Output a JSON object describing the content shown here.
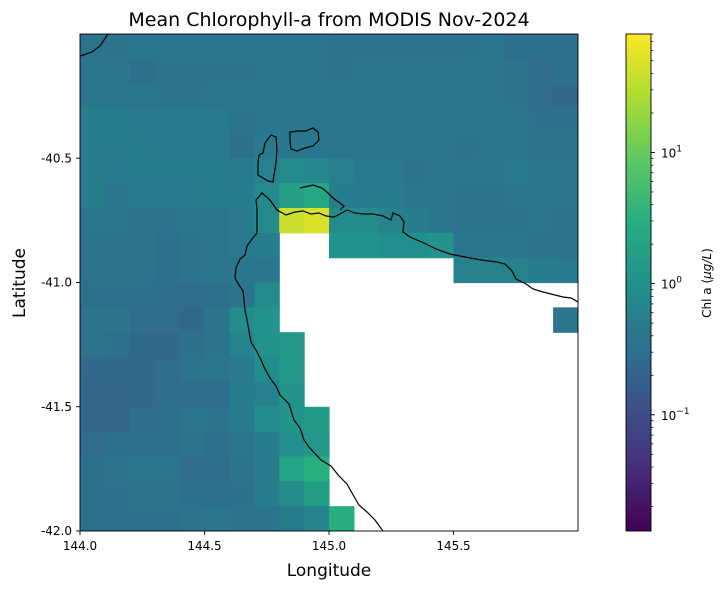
{
  "chart_data": {
    "type": "heatmap",
    "title": "Mean Chlorophyll-a from MODIS Nov-2024",
    "xlabel": "Longitude",
    "ylabel": "Latitude",
    "xlim": [
      144.0,
      146.0
    ],
    "ylim": [
      -42.0,
      -40.0
    ],
    "x_ticks": [
      144.0,
      144.5,
      145.0,
      145.5
    ],
    "x_tick_labels": [
      "144.0",
      "144.5",
      "145.0",
      "145.5"
    ],
    "y_ticks": [
      -40.5,
      -41.0,
      -41.5,
      -42.0
    ],
    "y_tick_labels": [
      "-40.5",
      "-41.0",
      "-41.5",
      "-42.0"
    ],
    "grid": false,
    "colormap": "viridis",
    "colorbar": {
      "label": "Chl a",
      "units": "μg/L",
      "scale": "log",
      "range": [
        0.013,
        80
      ],
      "tick_values": [
        0.1,
        1,
        10
      ],
      "tick_bases": [
        "10",
        "10",
        "10"
      ],
      "tick_exponents": [
        "−1",
        "0",
        "1"
      ]
    },
    "cell_size_deg": 0.1,
    "no_data": "land (white)",
    "grid_values_log10": [
      [
        -0.45,
        -0.45,
        -0.4,
        -0.4,
        -0.4,
        -0.4,
        -0.4,
        -0.4,
        -0.4,
        -0.4,
        -0.45,
        -0.45,
        -0.45,
        -0.45,
        -0.45,
        -0.45,
        -0.4,
        -0.5,
        -0.5,
        -0.5
      ],
      [
        -0.4,
        -0.4,
        -0.5,
        -0.45,
        -0.45,
        -0.45,
        -0.45,
        -0.4,
        -0.4,
        -0.4,
        -0.45,
        -0.4,
        -0.4,
        -0.4,
        -0.4,
        -0.4,
        -0.4,
        -0.45,
        -0.55,
        -0.5
      ],
      [
        -0.4,
        -0.4,
        -0.4,
        -0.45,
        -0.45,
        -0.4,
        -0.4,
        -0.4,
        -0.4,
        -0.4,
        -0.4,
        -0.4,
        -0.4,
        -0.4,
        -0.4,
        -0.4,
        -0.4,
        -0.45,
        -0.55,
        -0.6
      ],
      [
        -0.3,
        -0.3,
        -0.35,
        -0.35,
        -0.35,
        -0.35,
        -0.45,
        -0.4,
        -0.4,
        -0.4,
        -0.4,
        -0.4,
        -0.4,
        -0.4,
        -0.4,
        -0.4,
        -0.4,
        -0.4,
        -0.5,
        -0.5
      ],
      [
        -0.3,
        -0.3,
        -0.3,
        -0.35,
        -0.35,
        -0.35,
        -0.5,
        -0.35,
        -0.4,
        -0.4,
        -0.4,
        -0.4,
        -0.4,
        -0.4,
        -0.4,
        -0.45,
        -0.4,
        -0.4,
        -0.45,
        -0.45
      ],
      [
        -0.3,
        -0.35,
        -0.3,
        -0.3,
        -0.3,
        -0.3,
        -0.35,
        -0.2,
        -0.1,
        -0.15,
        -0.25,
        -0.35,
        -0.35,
        -0.45,
        -0.4,
        -0.4,
        -0.4,
        -0.35,
        -0.4,
        -0.4
      ],
      [
        -0.3,
        -0.4,
        -0.35,
        -0.35,
        -0.35,
        -0.3,
        -0.3,
        -0.1,
        0.25,
        0.35,
        -0.3,
        -0.35,
        -0.3,
        -0.4,
        -0.4,
        -0.45,
        -0.45,
        -0.4,
        -0.4,
        -0.4
      ],
      [
        -0.4,
        -0.4,
        -0.45,
        -0.45,
        -0.4,
        -0.4,
        -0.35,
        -0.1,
        1.6,
        1.7,
        -0.1,
        -0.1,
        -0.2,
        -0.3,
        -0.4,
        -0.45,
        -0.45,
        -0.45,
        -0.4,
        -0.45
      ],
      [
        -0.45,
        -0.45,
        -0.45,
        -0.5,
        -0.45,
        -0.4,
        -0.35,
        -0.3,
        null,
        null,
        0.05,
        0.05,
        0.0,
        0.0,
        0.05,
        -0.4,
        -0.4,
        -0.4,
        -0.45,
        -0.45
      ],
      [
        -0.45,
        -0.45,
        -0.45,
        -0.5,
        -0.45,
        -0.4,
        -0.4,
        -0.4,
        null,
        null,
        null,
        null,
        null,
        null,
        null,
        -0.2,
        -0.2,
        -0.2,
        -0.3,
        -0.35
      ],
      [
        -0.5,
        -0.5,
        -0.5,
        -0.55,
        -0.55,
        -0.5,
        -0.45,
        -0.1,
        null,
        null,
        null,
        null,
        null,
        null,
        null,
        null,
        null,
        null,
        null,
        null
      ],
      [
        -0.45,
        -0.45,
        -0.55,
        -0.55,
        -0.6,
        -0.45,
        -0.05,
        0.05,
        null,
        null,
        null,
        null,
        null,
        null,
        null,
        null,
        null,
        null,
        null,
        -0.4
      ],
      [
        -0.45,
        -0.5,
        -0.6,
        -0.6,
        -0.5,
        -0.45,
        -0.2,
        0.05,
        0.1,
        null,
        null,
        null,
        null,
        null,
        null,
        null,
        null,
        null,
        null,
        null
      ],
      [
        -0.6,
        -0.6,
        -0.6,
        -0.55,
        -0.45,
        -0.4,
        -0.35,
        -0.05,
        0.1,
        null,
        null,
        null,
        null,
        null,
        null,
        null,
        null,
        null,
        null,
        null
      ],
      [
        -0.65,
        -0.65,
        -0.6,
        -0.55,
        -0.55,
        -0.55,
        -0.3,
        -0.25,
        0.05,
        null,
        null,
        null,
        null,
        null,
        null,
        null,
        null,
        null,
        null,
        null
      ],
      [
        -0.65,
        -0.65,
        -0.55,
        -0.5,
        -0.4,
        -0.45,
        -0.35,
        -0.05,
        0.05,
        0.15,
        null,
        null,
        null,
        null,
        null,
        null,
        null,
        null,
        null,
        null
      ],
      [
        -0.55,
        -0.5,
        -0.5,
        -0.5,
        -0.45,
        -0.5,
        -0.4,
        -0.3,
        0.0,
        0.1,
        null,
        null,
        null,
        null,
        null,
        null,
        null,
        null,
        null,
        null
      ],
      [
        -0.5,
        -0.45,
        -0.4,
        -0.4,
        -0.55,
        -0.55,
        -0.45,
        -0.35,
        0.3,
        0.5,
        null,
        null,
        null,
        null,
        null,
        null,
        null,
        null,
        null,
        null
      ],
      [
        -0.5,
        -0.5,
        -0.45,
        -0.45,
        -0.5,
        -0.5,
        -0.5,
        -0.3,
        -0.1,
        0.2,
        null,
        null,
        null,
        null,
        null,
        null,
        null,
        null,
        null,
        null
      ],
      [
        -0.5,
        -0.5,
        -0.5,
        -0.5,
        -0.45,
        -0.4,
        -0.45,
        -0.45,
        -0.3,
        -0.2,
        0.45,
        null,
        null,
        null,
        null,
        null,
        null,
        null,
        null,
        null
      ],
      [
        -0.55,
        -0.55,
        -0.55,
        -0.55,
        -0.55,
        -0.3,
        -0.5,
        -0.45,
        -0.45,
        -0.35,
        0.15,
        0.25,
        null,
        null,
        null,
        null,
        null,
        null,
        null,
        null
      ]
    ]
  }
}
